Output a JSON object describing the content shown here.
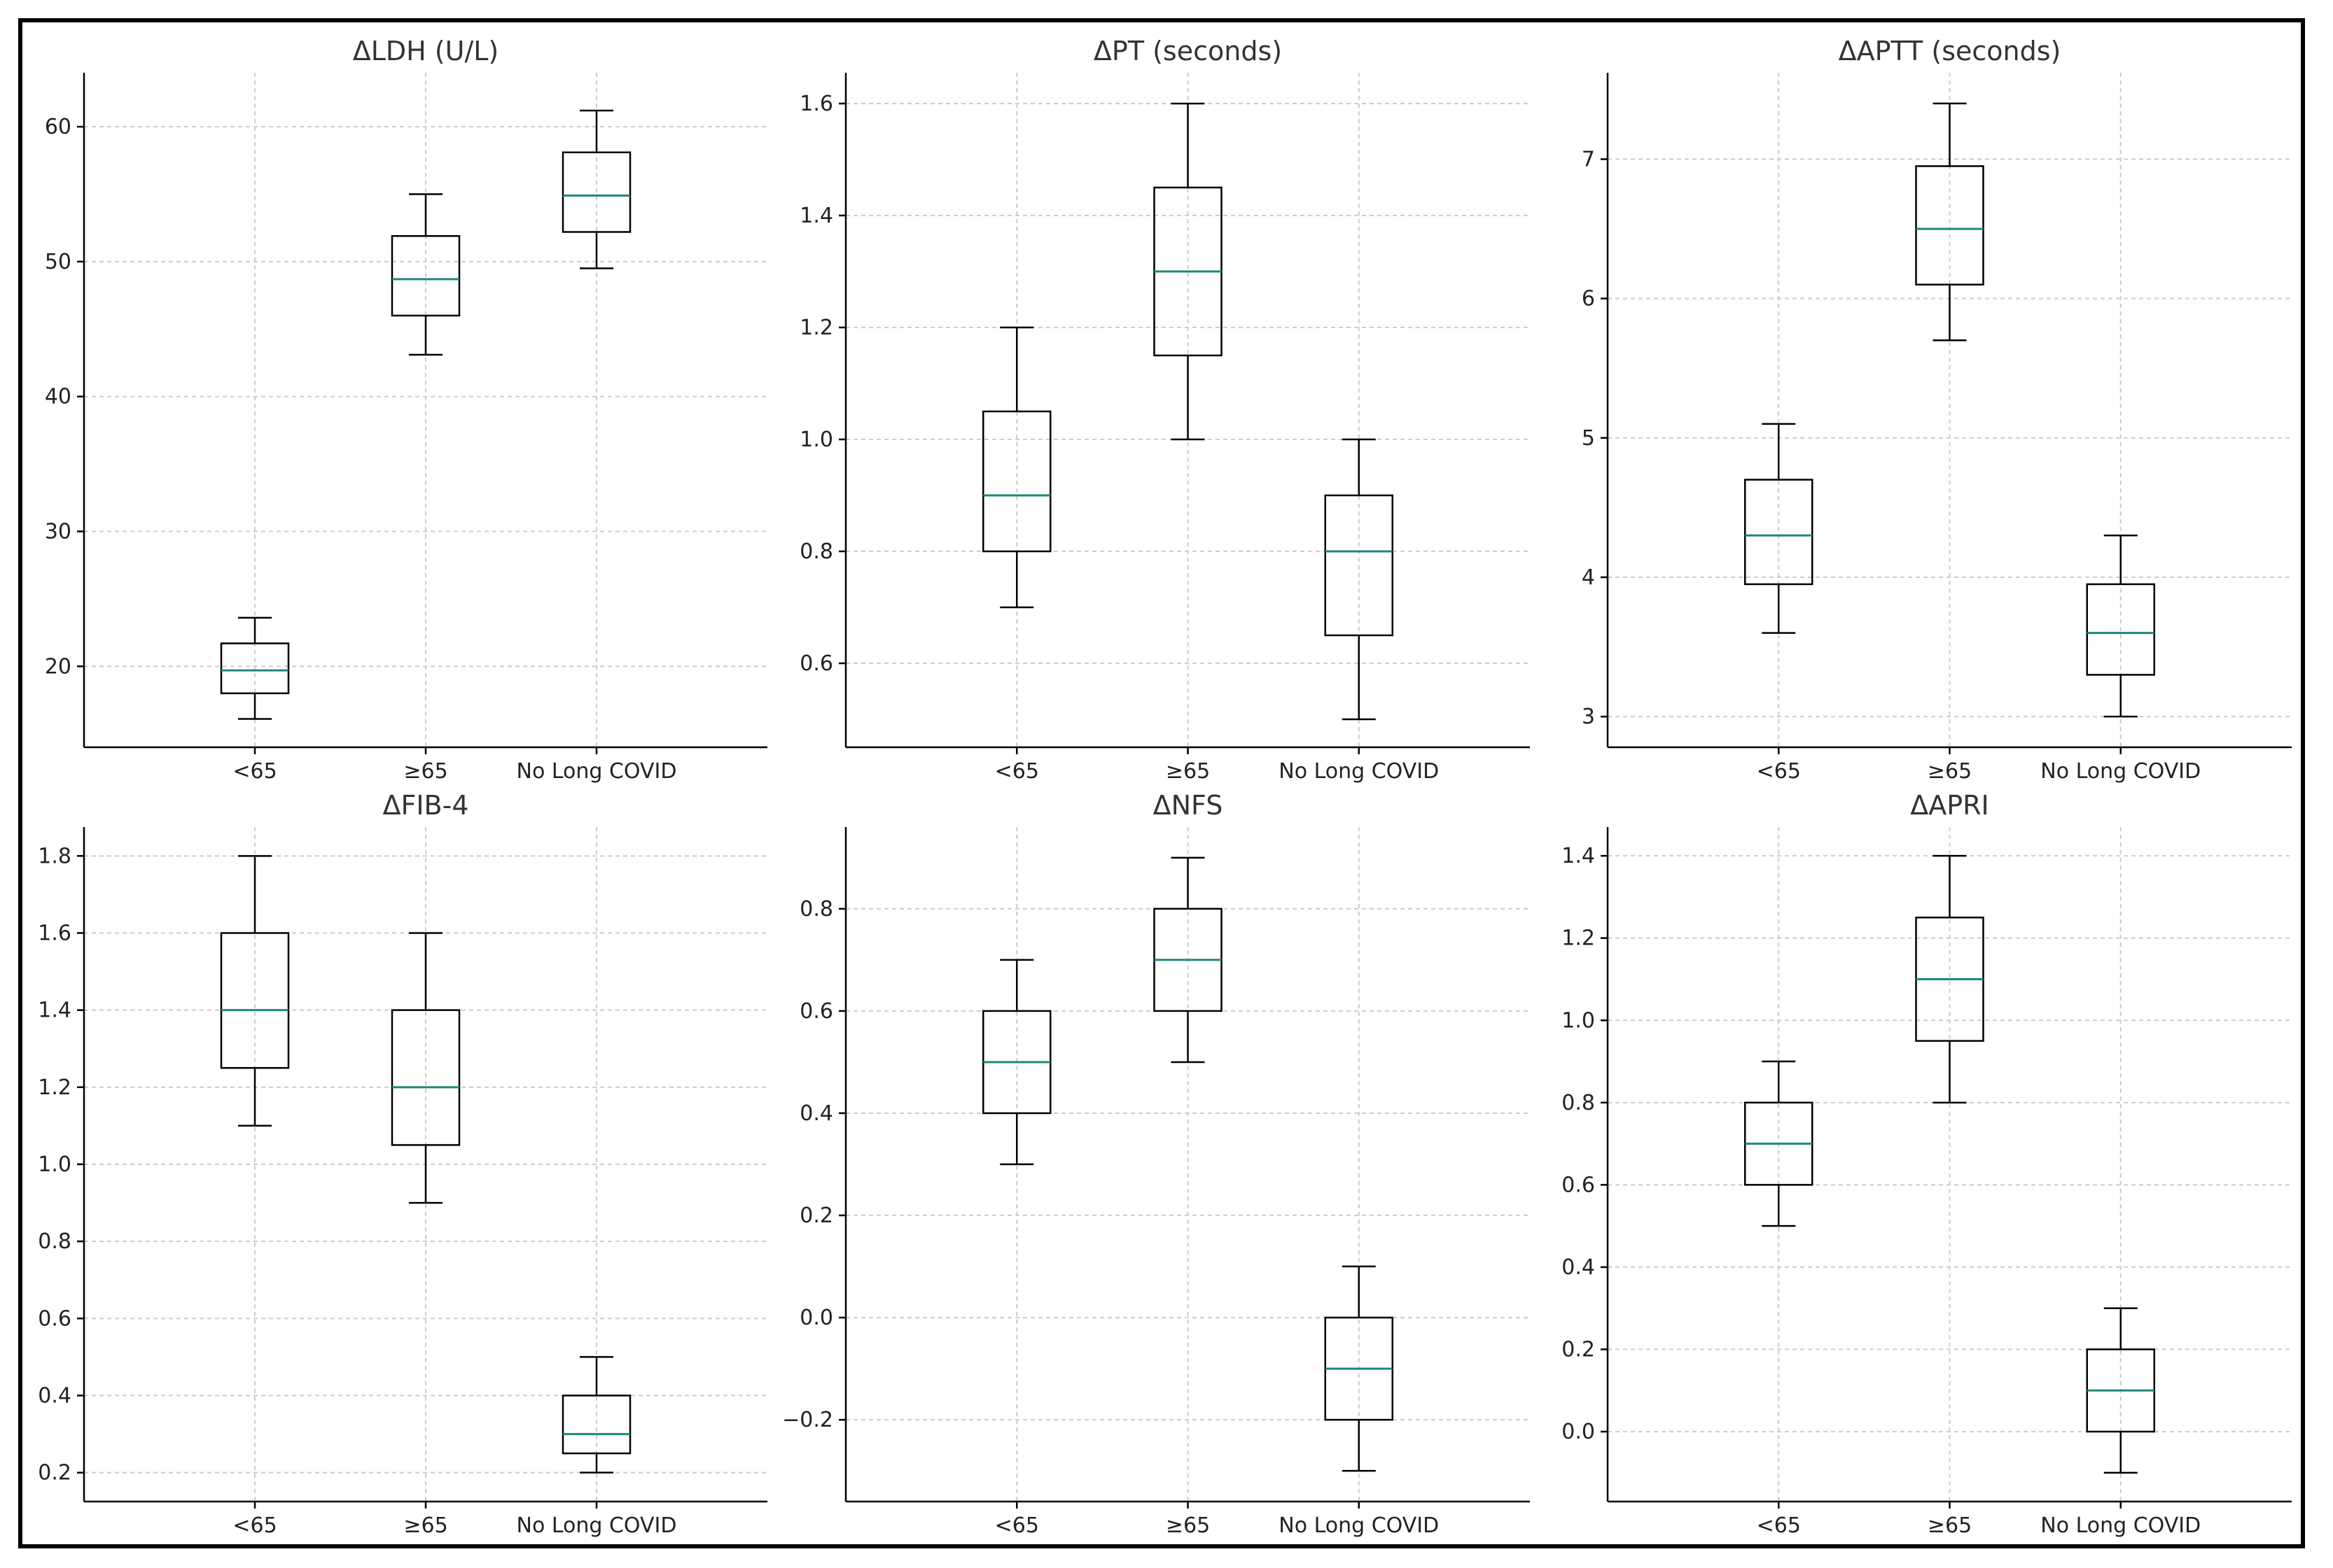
{
  "colors": {
    "median": "#1a8a7a",
    "box": "#000000",
    "grid": "#cccccc",
    "axis": "#000000"
  },
  "charts": [
    {
      "type": "box",
      "title": "ΔLDH (U/L)",
      "categories": [
        "<65",
        "≥65",
        "No Long COVID"
      ],
      "yticks": [
        "20",
        "30",
        "40",
        "50",
        "60"
      ],
      "ylim": [
        14,
        64
      ],
      "grid": true,
      "boxes": [
        {
          "whislo": 16.1,
          "q1": 18.0,
          "med": 19.7,
          "q3": 21.7,
          "whishi": 23.6
        },
        {
          "whislo": 43.1,
          "q1": 46.0,
          "med": 48.7,
          "q3": 51.9,
          "whishi": 55.0
        },
        {
          "whislo": 49.5,
          "q1": 52.2,
          "med": 54.9,
          "q3": 58.1,
          "whishi": 61.2
        }
      ]
    },
    {
      "type": "box",
      "title": "ΔPT (seconds)",
      "categories": [
        "<65",
        "≥65",
        "No Long COVID"
      ],
      "yticks": [
        "0.6",
        "0.8",
        "1.0",
        "1.2",
        "1.4",
        "1.6"
      ],
      "ylim": [
        0.45,
        1.655
      ],
      "grid": true,
      "boxes": [
        {
          "whislo": 0.7,
          "q1": 0.8,
          "med": 0.9,
          "q3": 1.05,
          "whishi": 1.2
        },
        {
          "whislo": 1.0,
          "q1": 1.15,
          "med": 1.3,
          "q3": 1.45,
          "whishi": 1.6
        },
        {
          "whislo": 0.5,
          "q1": 0.65,
          "med": 0.8,
          "q3": 0.9,
          "whishi": 1.0
        }
      ]
    },
    {
      "type": "box",
      "title": "ΔAPTT (seconds)",
      "categories": [
        "<65",
        "≥65",
        "No Long COVID"
      ],
      "yticks": [
        "3",
        "4",
        "5",
        "6",
        "7"
      ],
      "ylim": [
        2.78,
        7.62
      ],
      "grid": true,
      "boxes": [
        {
          "whislo": 3.6,
          "q1": 3.95,
          "med": 4.3,
          "q3": 4.7,
          "whishi": 5.1
        },
        {
          "whislo": 5.7,
          "q1": 6.1,
          "med": 6.5,
          "q3": 6.95,
          "whishi": 7.4
        },
        {
          "whislo": 3.0,
          "q1": 3.3,
          "med": 3.6,
          "q3": 3.95,
          "whishi": 4.3
        }
      ]
    },
    {
      "type": "box",
      "title": "ΔFIB-4",
      "categories": [
        "<65",
        "≥65",
        "No Long COVID"
      ],
      "yticks": [
        "0.2",
        "0.4",
        "0.6",
        "0.8",
        "1.0",
        "1.2",
        "1.4",
        "1.6",
        "1.8"
      ],
      "ylim": [
        0.125,
        1.875
      ],
      "grid": true,
      "boxes": [
        {
          "whislo": 1.1,
          "q1": 1.25,
          "med": 1.4,
          "q3": 1.6,
          "whishi": 1.8
        },
        {
          "whislo": 0.9,
          "q1": 1.05,
          "med": 1.2,
          "q3": 1.4,
          "whishi": 1.6
        },
        {
          "whislo": 0.2,
          "q1": 0.25,
          "med": 0.3,
          "q3": 0.4,
          "whishi": 0.5
        }
      ]
    },
    {
      "type": "box",
      "title": "ΔNFS",
      "categories": [
        "<65",
        "≥65",
        "No Long COVID"
      ],
      "yticks": [
        "−0.2",
        "0.0",
        "0.2",
        "0.4",
        "0.6",
        "0.8"
      ],
      "ylim": [
        -0.36,
        0.96
      ],
      "grid": true,
      "boxes": [
        {
          "whislo": 0.3,
          "q1": 0.4,
          "med": 0.5,
          "q3": 0.6,
          "whishi": 0.7
        },
        {
          "whislo": 0.5,
          "q1": 0.6,
          "med": 0.7,
          "q3": 0.8,
          "whishi": 0.9
        },
        {
          "whislo": -0.3,
          "q1": -0.2,
          "med": -0.1,
          "q3": 0.0,
          "whishi": 0.1
        }
      ]
    },
    {
      "type": "box",
      "title": "ΔAPRI",
      "categories": [
        "<65",
        "≥65",
        "No Long COVID"
      ],
      "yticks": [
        "0.0",
        "0.2",
        "0.4",
        "0.6",
        "0.8",
        "1.0",
        "1.2",
        "1.4"
      ],
      "ylim": [
        -0.17,
        1.47
      ],
      "grid": true,
      "boxes": [
        {
          "whislo": 0.5,
          "q1": 0.6,
          "med": 0.7,
          "q3": 0.8,
          "whishi": 0.9
        },
        {
          "whislo": 0.8,
          "q1": 0.95,
          "med": 1.1,
          "q3": 1.25,
          "whishi": 1.4
        },
        {
          "whislo": -0.1,
          "q1": 0.0,
          "med": 0.1,
          "q3": 0.2,
          "whishi": 0.3
        }
      ]
    }
  ]
}
